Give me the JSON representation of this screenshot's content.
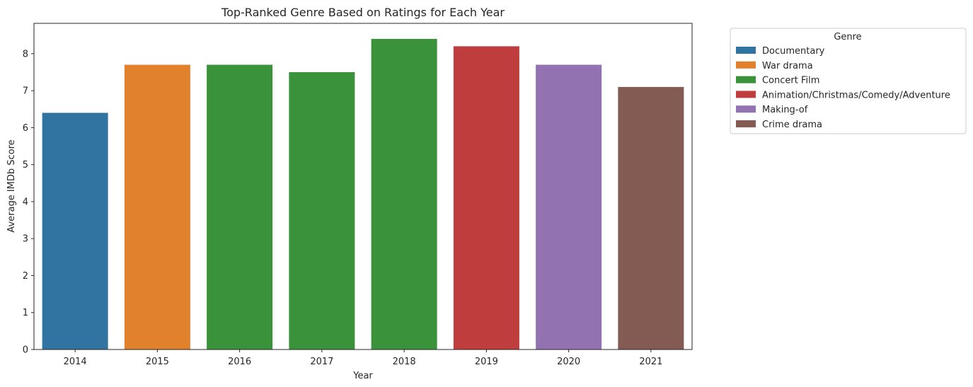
{
  "chart_data": {
    "type": "bar",
    "title": "Top-Ranked Genre Based on Ratings for Each Year",
    "xlabel": "Year",
    "ylabel": "Average IMDb Score",
    "ylim": [
      0,
      8.82
    ],
    "yticks": [
      "0",
      "1",
      "2",
      "3",
      "4",
      "5",
      "6",
      "7",
      "8"
    ],
    "grid": false,
    "legend_title": "Genre",
    "legend_placement": "outside-top-right",
    "genres": [
      {
        "name": "Documentary",
        "color": "#3274a1"
      },
      {
        "name": "War drama",
        "color": "#e1812c"
      },
      {
        "name": "Concert Film",
        "color": "#3a923a"
      },
      {
        "name": "Animation/Christmas/Comedy/Adventure",
        "color": "#c03d3e"
      },
      {
        "name": "Making-of",
        "color": "#9372b2"
      },
      {
        "name": "Crime drama",
        "color": "#845b53"
      }
    ],
    "categories": [
      "2014",
      "2015",
      "2016",
      "2017",
      "2018",
      "2019",
      "2020",
      "2021"
    ],
    "bars": [
      {
        "year": "2014",
        "value": 6.4,
        "genre": "Documentary"
      },
      {
        "year": "2015",
        "value": 7.7,
        "genre": "War drama"
      },
      {
        "year": "2016",
        "value": 7.7,
        "genre": "Concert Film"
      },
      {
        "year": "2017",
        "value": 7.5,
        "genre": "Concert Film"
      },
      {
        "year": "2018",
        "value": 8.4,
        "genre": "Concert Film"
      },
      {
        "year": "2019",
        "value": 8.2,
        "genre": "Animation/Christmas/Comedy/Adventure"
      },
      {
        "year": "2020",
        "value": 7.7,
        "genre": "Making-of"
      },
      {
        "year": "2021",
        "value": 7.1,
        "genre": "Crime drama"
      }
    ]
  }
}
